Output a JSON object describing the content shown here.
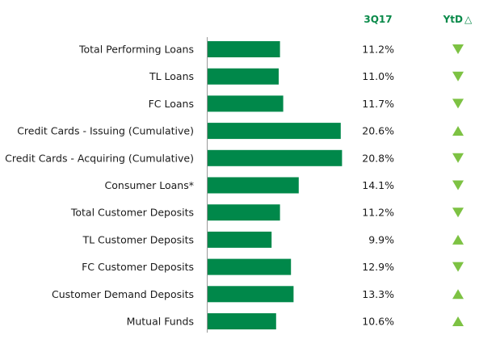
{
  "headers": {
    "period": "3Q17",
    "ytd": "YtD",
    "ytd_symbol": "△"
  },
  "colors": {
    "bar": "#00884a",
    "axis": "#999999",
    "arrow": "#7dc243",
    "header": "#0a8a4a"
  },
  "chart_data": {
    "type": "bar",
    "orientation": "horizontal",
    "title": "",
    "categories": [
      "Total Performing Loans",
      "TL Loans",
      "FC Loans",
      "Credit Cards - Issuing (Cumulative)",
      "Credit Cards - Acquiring (Cumulative)",
      "Consumer Loans*",
      "Total Customer Deposits",
      "TL Customer Deposits",
      "FC Customer Deposits",
      "Customer Demand Deposits",
      "Mutual Funds"
    ],
    "values": [
      11.2,
      11.0,
      11.7,
      20.6,
      20.8,
      14.1,
      11.2,
      9.9,
      12.9,
      13.3,
      10.6
    ],
    "value_labels": [
      "11.2%",
      "11.0%",
      "11.7%",
      "20.6%",
      "20.8%",
      "14.1%",
      "11.2%",
      "9.9%",
      "12.9%",
      "13.3%",
      "10.6%"
    ],
    "ytd_direction": [
      "down",
      "down",
      "down",
      "up",
      "down",
      "down",
      "down",
      "up",
      "down",
      "up",
      "up"
    ],
    "xlim": [
      0,
      21
    ],
    "grid": false,
    "legend": "none"
  }
}
